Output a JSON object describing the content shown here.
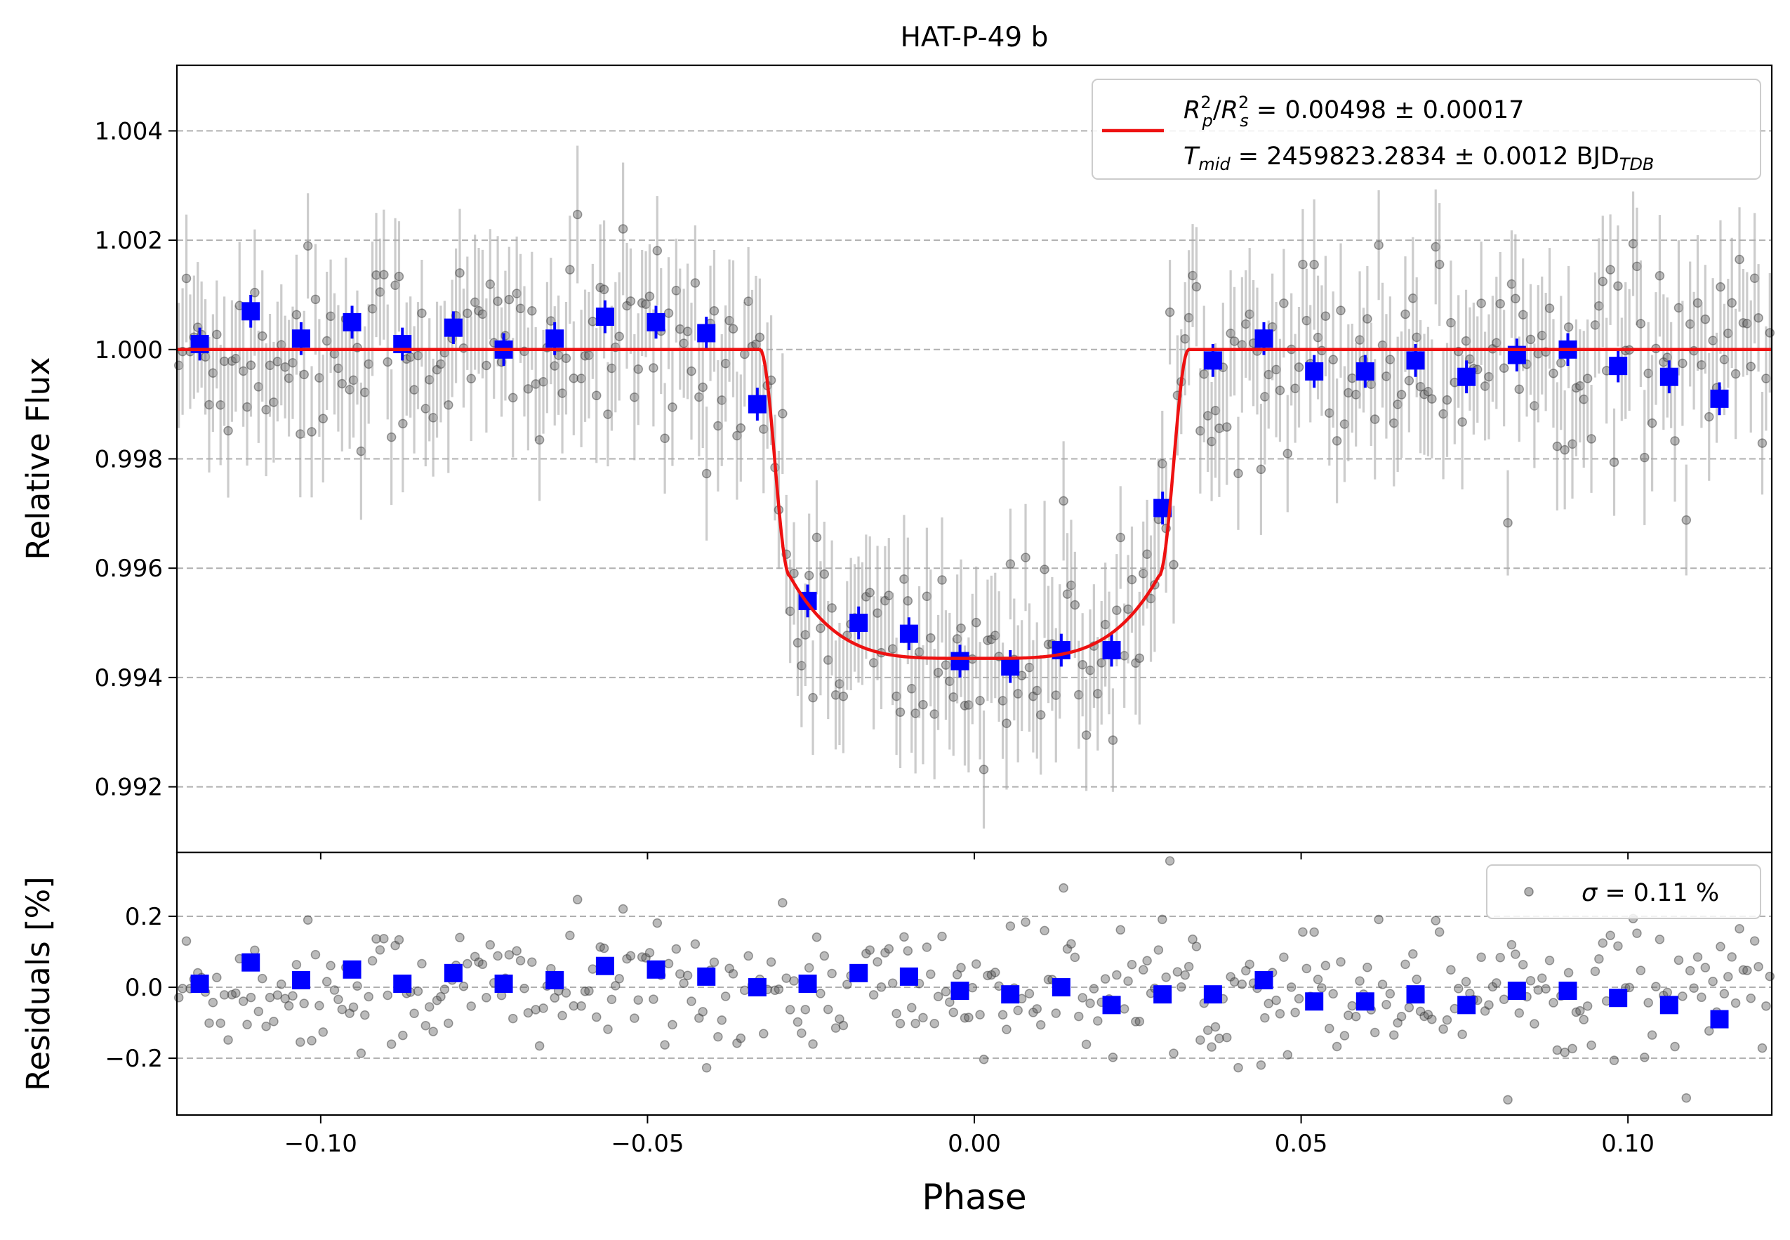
{
  "chart_data": [
    {
      "type": "scatter",
      "title": "HAT-P-49 b",
      "xlabel": "",
      "ylabel": "Relative Flux",
      "xlim": [
        -0.122,
        0.122
      ],
      "ylim": [
        0.9908,
        1.0052
      ],
      "yticks": [
        0.992,
        0.994,
        0.996,
        0.998,
        1.0,
        1.002,
        1.004
      ],
      "ytick_labels": [
        "0.992",
        "0.994",
        "0.996",
        "0.998",
        "1.000",
        "1.002",
        "1.004"
      ],
      "grid": "horizontal dashed",
      "legend": {
        "placement": "top-right",
        "line1": "R_p^2/R_s^2 = 0.00498 ± 0.00017",
        "line2": "T_mid = 2459823.2834 ± 0.0012 BJD_TDB",
        "line1_parts": {
          "sym": "R",
          "sub1": "p",
          "sup1": "2",
          "slash": "/",
          "sub2": "s",
          "sup2": "2",
          "rest": " = 0.00498 ± 0.00017"
        },
        "line2_parts": {
          "sym": "T",
          "sub": "mid",
          "rest": " = 2459823.2834 ± 0.0012 BJD",
          "unit_sub": "TDB"
        }
      },
      "model": {
        "name": "transit model",
        "color": "#ee1111",
        "baseline": 1.0,
        "ingress_start": -0.0328,
        "full_start": -0.0282,
        "full_end": 0.0282,
        "egress_end": 0.0328,
        "edge_depth_flux": 0.99585,
        "center_flux": 0.99435
      },
      "binned": {
        "name": "binned data",
        "color": "#0000ff",
        "x": [
          -0.1185,
          -0.1107,
          -0.103,
          -0.0952,
          -0.0875,
          -0.0797,
          -0.072,
          -0.0642,
          -0.0565,
          -0.0487,
          -0.041,
          -0.0332,
          -0.0255,
          -0.0177,
          -0.01,
          -0.0022,
          0.0055,
          0.0133,
          0.021,
          0.0288,
          0.0365,
          0.0443,
          0.052,
          0.0598,
          0.0675,
          0.0753,
          0.083,
          0.0908,
          0.0985,
          0.1063,
          0.114
        ],
        "y": [
          1.0001,
          1.0007,
          1.0002,
          1.0005,
          1.0001,
          1.0004,
          1.0,
          1.0002,
          1.0006,
          1.0005,
          1.0003,
          0.999,
          0.9954,
          0.995,
          0.9948,
          0.9943,
          0.9942,
          0.9945,
          0.9945,
          0.9971,
          0.9998,
          1.0002,
          0.9996,
          0.9996,
          0.9998,
          0.9995,
          0.9999,
          1.0,
          0.9997,
          0.9995,
          0.9991
        ],
        "yerr": 0.0003
      },
      "raw": {
        "name": "unbinned data",
        "color": "#555555",
        "n_points": 420,
        "scatter": 0.0011,
        "yerr": 0.0011
      }
    },
    {
      "type": "scatter",
      "title": "",
      "xlabel": "Phase",
      "ylabel": "Residuals [%]",
      "xlim": [
        -0.122,
        0.122
      ],
      "ylim": [
        -0.36,
        0.38
      ],
      "xticks": [
        -0.1,
        -0.05,
        0.0,
        0.05,
        0.1
      ],
      "xtick_labels": [
        "−0.10",
        "−0.05",
        "0.00",
        "0.05",
        "0.10"
      ],
      "yticks": [
        -0.2,
        0.0,
        0.2
      ],
      "ytick_labels": [
        "−0.2",
        "0.0",
        "0.2"
      ],
      "grid": "horizontal dashed",
      "legend": {
        "placement": "top-right",
        "sigma_symbol": "σ",
        "text": " = 0.11 %"
      },
      "binned": {
        "name": "binned residuals",
        "color": "#0000ff",
        "x": [
          -0.1185,
          -0.1107,
          -0.103,
          -0.0952,
          -0.0875,
          -0.0797,
          -0.072,
          -0.0642,
          -0.0565,
          -0.0487,
          -0.041,
          -0.0332,
          -0.0255,
          -0.0177,
          -0.01,
          -0.0022,
          0.0055,
          0.0133,
          0.021,
          0.0288,
          0.0365,
          0.0443,
          0.052,
          0.0598,
          0.0675,
          0.0753,
          0.083,
          0.0908,
          0.0985,
          0.1063,
          0.114
        ],
        "y": [
          0.01,
          0.07,
          0.02,
          0.05,
          0.01,
          0.04,
          0.01,
          0.02,
          0.06,
          0.05,
          0.03,
          0.0,
          0.01,
          0.04,
          0.03,
          -0.01,
          -0.02,
          0.0,
          -0.05,
          -0.02,
          -0.02,
          0.02,
          -0.04,
          -0.04,
          -0.02,
          -0.05,
          -0.01,
          -0.01,
          -0.03,
          -0.05,
          -0.09
        ]
      }
    }
  ]
}
